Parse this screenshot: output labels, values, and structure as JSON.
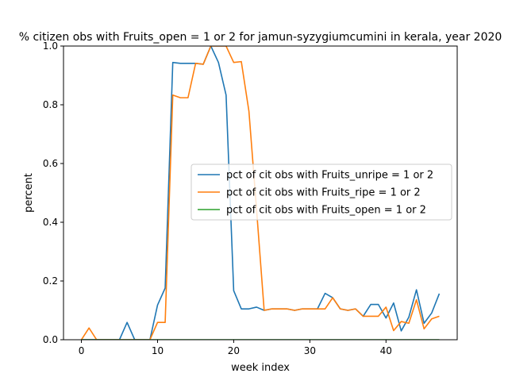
{
  "chart_data": {
    "type": "line",
    "title": "% citizen obs with Fruits_open = 1 or 2 for jamun-syzygiumcumini in kerala, year 2020",
    "xlabel": "week index",
    "ylabel": "percent",
    "xlim": [
      -2.35,
      49.35
    ],
    "ylim": [
      0,
      1.0
    ],
    "xticks": [
      0,
      10,
      20,
      30,
      40
    ],
    "yticks": [
      0.0,
      0.2,
      0.4,
      0.6,
      0.8,
      1.0
    ],
    "ytick_labels": [
      "0.0",
      "0.2",
      "0.4",
      "0.6",
      "0.8",
      "1.0"
    ],
    "legend": "center-right",
    "grid": false,
    "x": [
      0,
      1,
      2,
      3,
      4,
      5,
      6,
      7,
      8,
      9,
      10,
      11,
      12,
      13,
      14,
      15,
      16,
      17,
      18,
      19,
      20,
      21,
      22,
      23,
      24,
      25,
      26,
      27,
      28,
      29,
      30,
      31,
      32,
      33,
      34,
      35,
      36,
      37,
      38,
      39,
      40,
      41,
      42,
      43,
      44,
      45,
      46,
      47
    ],
    "series": [
      {
        "name": "pct of cit obs with Fruits_unripe = 1 or 2",
        "color": "#1f77b4",
        "values": [
          0,
          0,
          0,
          0,
          0,
          0,
          0.059,
          0,
          0,
          0,
          0.118,
          0.176,
          0.944,
          0.941,
          0.941,
          0.941,
          0.938,
          1.0,
          0.944,
          0.833,
          0.167,
          0.105,
          0.105,
          0.111,
          0.1,
          0.105,
          0.105,
          0.105,
          0.1,
          0.105,
          0.105,
          0.105,
          0.158,
          0.143,
          0.105,
          0.1,
          0.105,
          0.08,
          0.12,
          0.12,
          0.074,
          0.125,
          0.03,
          0.077,
          0.17,
          0.056,
          0.091,
          0.157
        ]
      },
      {
        "name": "pct of cit obs with Fruits_ripe = 1 or 2",
        "color": "#ff7f0e",
        "values": [
          0,
          0.04,
          0,
          0,
          0,
          0,
          0,
          0,
          0,
          0,
          0.059,
          0.059,
          0.833,
          0.824,
          0.824,
          0.941,
          0.938,
          1.0,
          1.0,
          1.0,
          0.944,
          0.947,
          0.778,
          0.444,
          0.1,
          0.105,
          0.105,
          0.105,
          0.1,
          0.105,
          0.105,
          0.105,
          0.105,
          0.143,
          0.105,
          0.1,
          0.105,
          0.08,
          0.08,
          0.08,
          0.111,
          0.031,
          0.062,
          0.056,
          0.136,
          0.037,
          0.071,
          0.08
        ]
      },
      {
        "name": "pct of cit obs with Fruits_open = 1 or 2",
        "color": "#2ca02c",
        "values": [
          0,
          0,
          0,
          0,
          0,
          0,
          0,
          0,
          0,
          0,
          0,
          0,
          0,
          0,
          0,
          0,
          0,
          0,
          0,
          0,
          0,
          0,
          0,
          0,
          0,
          0,
          0,
          0,
          0,
          0,
          0,
          0,
          0,
          0,
          0,
          0,
          0,
          0,
          0,
          0,
          0,
          0,
          0,
          0,
          0,
          0,
          0,
          0
        ]
      }
    ]
  }
}
